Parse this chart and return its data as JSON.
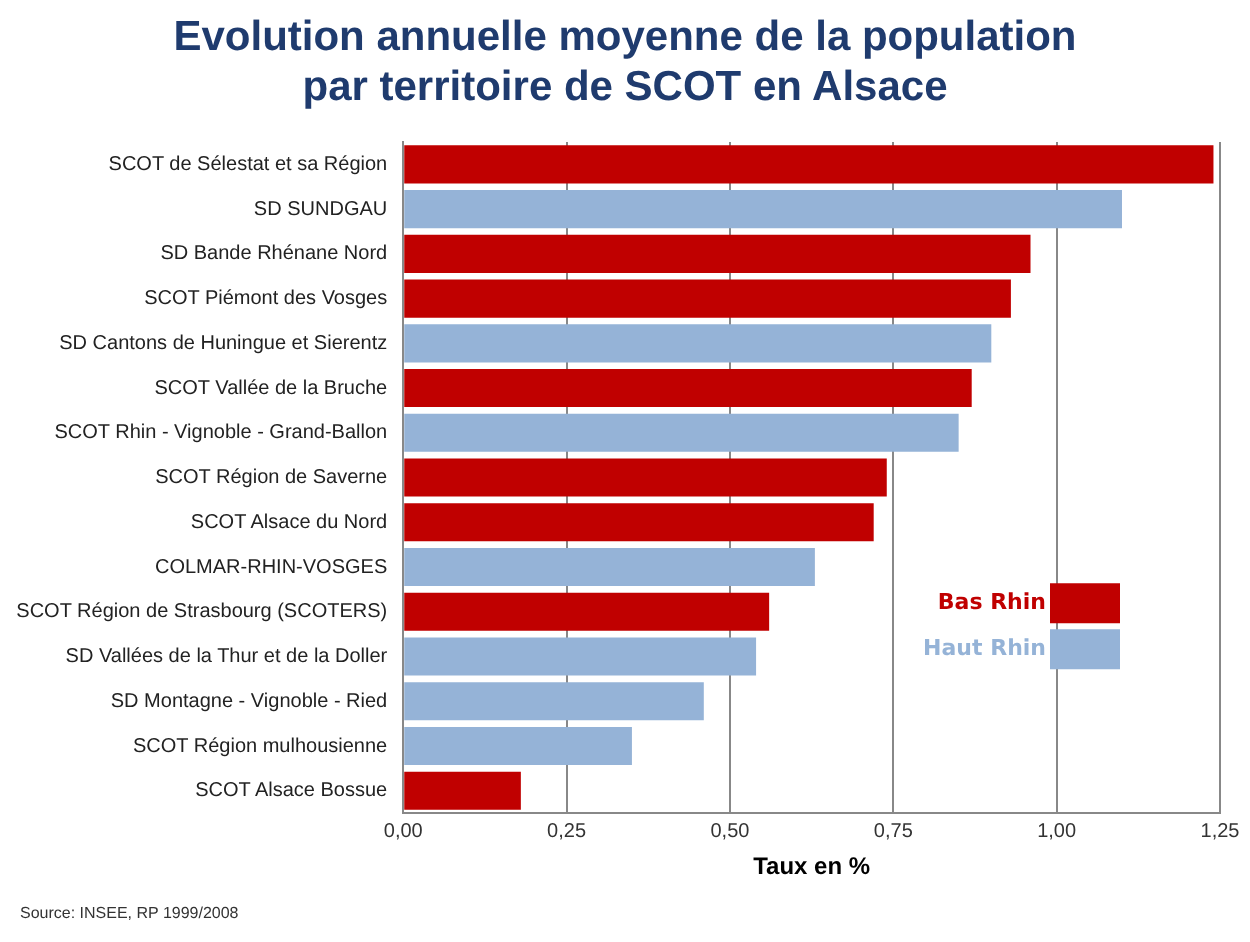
{
  "chart_data": {
    "type": "bar",
    "orientation": "horizontal",
    "title": "Evolution annuelle moyenne de la population par territoire de SCOT en Alsace",
    "xlabel": "Taux en %",
    "categories": [
      "SCOT de Sélestat et sa Région",
      "SD SUNDGAU",
      "SD Bande Rhénane Nord",
      "SCOT Piémont des Vosges",
      "SD Cantons de Huningue et Sierentz",
      "SCOT Vallée de la Bruche",
      "SCOT Rhin - Vignoble - Grand-Ballon",
      "SCOT Région de Saverne",
      "SCOT Alsace du Nord",
      "COLMAR-RHIN-VOSGES",
      "SCOT Région de Strasbourg (SCOTERS)",
      "SD Vallées de la Thur et de la Doller",
      "SD Montagne - Vignoble - Ried",
      "SCOT Région mulhousienne",
      "SCOT Alsace Bossue"
    ],
    "series": [
      {
        "name": "Bas Rhin",
        "color": "#c00000",
        "values": [
          1.24,
          null,
          0.96,
          0.93,
          null,
          0.87,
          null,
          0.74,
          0.72,
          null,
          0.56,
          null,
          null,
          null,
          0.18
        ]
      },
      {
        "name": "Haut Rhin",
        "color": "#95b3d7",
        "values": [
          null,
          1.1,
          null,
          null,
          0.9,
          null,
          0.85,
          null,
          null,
          0.63,
          null,
          0.54,
          0.46,
          0.35,
          null
        ]
      }
    ],
    "xlim": [
      0,
      1.25
    ],
    "xticks": [
      {
        "value": 0,
        "label": "0,00"
      },
      {
        "value": 0.25,
        "label": "0,25"
      },
      {
        "value": 0.5,
        "label": "0,50"
      },
      {
        "value": 0.75,
        "label": "0,75"
      },
      {
        "value": 1,
        "label": "1,00"
      },
      {
        "value": 1.25,
        "label": "1,25"
      }
    ],
    "grid": "x",
    "legend": "bottom right",
    "annotations": [
      "Source: INSEE, RP 1999/2008"
    ]
  }
}
